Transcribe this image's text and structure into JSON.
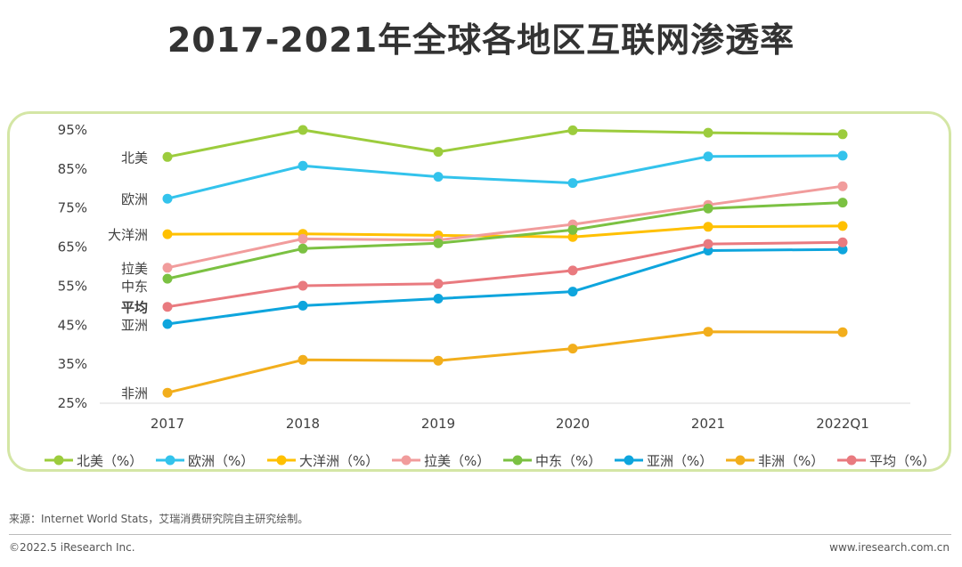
{
  "title": "2017-2021年全球各地区互联网渗透率",
  "source": "来源：Internet World Stats，艾瑞消费研究院自主研究绘制。",
  "copyright": "©2022.5 iResearch Inc.",
  "website": "www.iresearch.com.cn",
  "chart_data": {
    "type": "line",
    "categories": [
      "2017",
      "2018",
      "2019",
      "2020",
      "2021",
      "2022Q1"
    ],
    "y_ticks": [
      "95%",
      "85%",
      "75%",
      "65%",
      "55%",
      "45%",
      "35%",
      "25%"
    ],
    "ylim": [
      25,
      95
    ],
    "grid": false,
    "legend_position": "bottom",
    "series": [
      {
        "name": "北美（%）",
        "label": "北美",
        "label_bold": false,
        "color": "#9ccc3d",
        "values": [
          88.1,
          95.0,
          89.4,
          94.9,
          94.3,
          93.9
        ]
      },
      {
        "name": "欧洲（%）",
        "label": "欧洲",
        "label_bold": false,
        "color": "#33c3ec",
        "values": [
          77.4,
          85.8,
          83.0,
          81.4,
          88.2,
          88.4
        ]
      },
      {
        "name": "大洋洲（%）",
        "label": "大洋洲",
        "label_bold": false,
        "color": "#ffc000",
        "values": [
          68.3,
          68.4,
          68.0,
          67.6,
          70.2,
          70.4
        ]
      },
      {
        "name": "拉美（%）",
        "label": "拉美",
        "label_bold": false,
        "color": "#f19c9c",
        "values": [
          59.7,
          67.1,
          66.8,
          70.8,
          75.8,
          80.6
        ]
      },
      {
        "name": "中东（%）",
        "label": "中东",
        "label_bold": false,
        "color": "#7bc142",
        "values": [
          56.9,
          64.6,
          66.0,
          69.4,
          74.9,
          76.4
        ]
      },
      {
        "name": "亚洲（%）",
        "label": "亚洲",
        "label_bold": false,
        "color": "#0ea5dd",
        "values": [
          45.3,
          50.0,
          51.8,
          53.6,
          64.1,
          64.4
        ]
      },
      {
        "name": "非洲（%）",
        "label": "非洲",
        "label_bold": false,
        "color": "#f2ae1c",
        "values": [
          27.7,
          36.1,
          35.9,
          39.0,
          43.3,
          43.2
        ]
      },
      {
        "name": "平均（%）",
        "label": "平均",
        "label_bold": true,
        "color": "#e97a7f",
        "values": [
          49.7,
          55.1,
          55.6,
          59.0,
          65.8,
          66.2
        ]
      }
    ]
  }
}
